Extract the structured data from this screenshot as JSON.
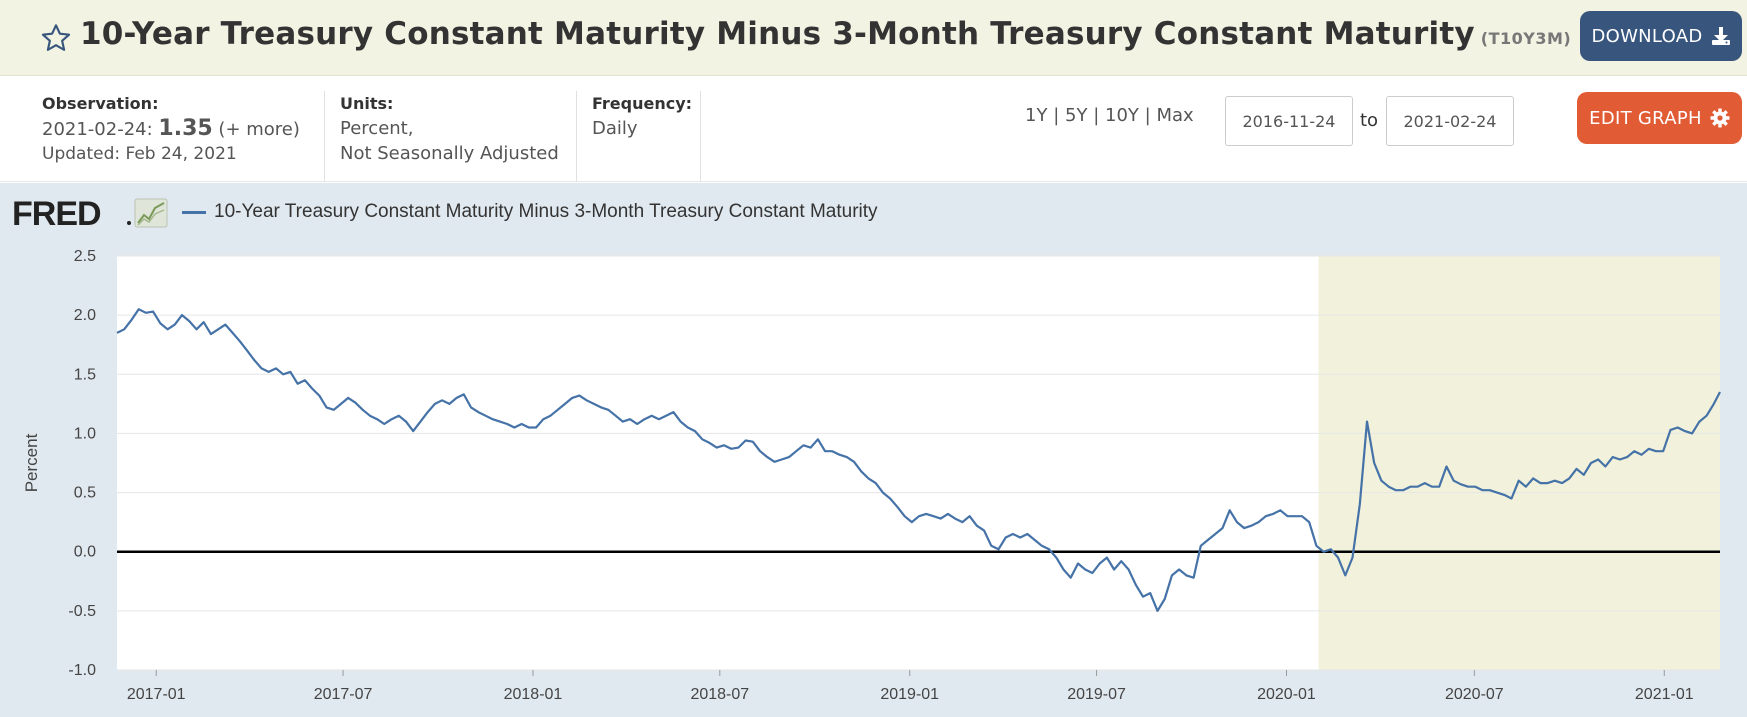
{
  "header": {
    "title": "10-Year Treasury Constant Maturity Minus 3-Month Treasury Constant Maturity",
    "series_id": "(T10Y3M)",
    "download_label": "DOWNLOAD"
  },
  "meta": {
    "observation_label": "Observation:",
    "observation_date": "2021-02-24:",
    "observation_value": "1.35",
    "observation_more": "(+ more)",
    "updated": "Updated: Feb 24, 2021",
    "units_label": "Units:",
    "units_line1": "Percent,",
    "units_line2": "Not Seasonally Adjusted",
    "frequency_label": "Frequency:",
    "frequency_value": "Daily"
  },
  "controls": {
    "range_1y": "1Y",
    "range_5y": "5Y",
    "range_10y": "10Y",
    "range_max": "Max",
    "start_date": "2016-11-24",
    "to_label": "to",
    "end_date": "2021-02-24",
    "edit_label": "EDIT GRAPH"
  },
  "colors": {
    "series": "#4572a7",
    "recession_band": "#f2f2dc",
    "plot_bg": "#ffffff",
    "chart_bg": "#e1e9f0",
    "download_btn": "#37557d",
    "edit_btn": "#e15b35"
  },
  "chart_data": {
    "type": "line",
    "title": "",
    "xlabel": "",
    "ylabel": "Percent",
    "ylim": [
      -1.0,
      2.5
    ],
    "xlim": [
      "2016-11-24",
      "2021-02-24"
    ],
    "yticks": [
      2.5,
      2.0,
      1.5,
      1.0,
      0.5,
      0.0,
      -0.5,
      -1.0
    ],
    "ytick_labels": [
      "2.5",
      "2.0",
      "1.5",
      "1.0",
      "0.5",
      "0.0",
      "-0.5",
      "-1.0"
    ],
    "xticks": [
      "2017-01-01",
      "2017-07-01",
      "2018-01-01",
      "2018-07-01",
      "2019-01-01",
      "2019-07-01",
      "2020-01-01",
      "2020-07-01",
      "2021-01-01"
    ],
    "xtick_labels": [
      "2017-01",
      "2017-07",
      "2018-01",
      "2018-07",
      "2019-01",
      "2019-07",
      "2020-01",
      "2020-07",
      "2021-01"
    ],
    "shaded_periods": [
      {
        "start": "2020-02-01",
        "end": "2021-02-24"
      }
    ],
    "reference_lines": [
      0.0
    ],
    "grid": "horizontal",
    "legend_position": "top-left",
    "series": [
      {
        "name": "10-Year Treasury Constant Maturity Minus 3-Month Treasury Constant Maturity",
        "points": [
          [
            "2016-11-24",
            1.85
          ],
          [
            "2016-12-01",
            1.88
          ],
          [
            "2016-12-08",
            1.96
          ],
          [
            "2016-12-15",
            2.05
          ],
          [
            "2016-12-22",
            2.02
          ],
          [
            "2016-12-29",
            2.03
          ],
          [
            "2017-01-05",
            1.93
          ],
          [
            "2017-01-12",
            1.88
          ],
          [
            "2017-01-19",
            1.92
          ],
          [
            "2017-01-26",
            2.0
          ],
          [
            "2017-02-02",
            1.95
          ],
          [
            "2017-02-09",
            1.88
          ],
          [
            "2017-02-16",
            1.94
          ],
          [
            "2017-02-23",
            1.84
          ],
          [
            "2017-03-02",
            1.88
          ],
          [
            "2017-03-09",
            1.92
          ],
          [
            "2017-03-16",
            1.85
          ],
          [
            "2017-03-23",
            1.78
          ],
          [
            "2017-03-30",
            1.7
          ],
          [
            "2017-04-06",
            1.62
          ],
          [
            "2017-04-13",
            1.55
          ],
          [
            "2017-04-20",
            1.52
          ],
          [
            "2017-04-27",
            1.55
          ],
          [
            "2017-05-04",
            1.5
          ],
          [
            "2017-05-11",
            1.52
          ],
          [
            "2017-05-18",
            1.42
          ],
          [
            "2017-05-25",
            1.45
          ],
          [
            "2017-06-01",
            1.38
          ],
          [
            "2017-06-08",
            1.32
          ],
          [
            "2017-06-15",
            1.22
          ],
          [
            "2017-06-22",
            1.2
          ],
          [
            "2017-06-29",
            1.25
          ],
          [
            "2017-07-06",
            1.3
          ],
          [
            "2017-07-13",
            1.26
          ],
          [
            "2017-07-20",
            1.2
          ],
          [
            "2017-07-27",
            1.15
          ],
          [
            "2017-08-03",
            1.12
          ],
          [
            "2017-08-10",
            1.08
          ],
          [
            "2017-08-17",
            1.12
          ],
          [
            "2017-08-24",
            1.15
          ],
          [
            "2017-08-31",
            1.1
          ],
          [
            "2017-09-07",
            1.02
          ],
          [
            "2017-09-14",
            1.1
          ],
          [
            "2017-09-21",
            1.18
          ],
          [
            "2017-09-28",
            1.25
          ],
          [
            "2017-10-05",
            1.28
          ],
          [
            "2017-10-12",
            1.25
          ],
          [
            "2017-10-19",
            1.3
          ],
          [
            "2017-10-26",
            1.33
          ],
          [
            "2017-11-02",
            1.22
          ],
          [
            "2017-11-09",
            1.18
          ],
          [
            "2017-11-16",
            1.15
          ],
          [
            "2017-11-23",
            1.12
          ],
          [
            "2017-11-30",
            1.1
          ],
          [
            "2017-12-07",
            1.08
          ],
          [
            "2017-12-14",
            1.05
          ],
          [
            "2017-12-21",
            1.08
          ],
          [
            "2017-12-28",
            1.05
          ],
          [
            "2018-01-04",
            1.05
          ],
          [
            "2018-01-11",
            1.12
          ],
          [
            "2018-01-18",
            1.15
          ],
          [
            "2018-01-25",
            1.2
          ],
          [
            "2018-02-01",
            1.25
          ],
          [
            "2018-02-08",
            1.3
          ],
          [
            "2018-02-15",
            1.32
          ],
          [
            "2018-02-22",
            1.28
          ],
          [
            "2018-03-01",
            1.25
          ],
          [
            "2018-03-08",
            1.22
          ],
          [
            "2018-03-15",
            1.2
          ],
          [
            "2018-03-22",
            1.15
          ],
          [
            "2018-03-29",
            1.1
          ],
          [
            "2018-04-05",
            1.12
          ],
          [
            "2018-04-12",
            1.08
          ],
          [
            "2018-04-19",
            1.12
          ],
          [
            "2018-04-26",
            1.15
          ],
          [
            "2018-05-03",
            1.12
          ],
          [
            "2018-05-10",
            1.15
          ],
          [
            "2018-05-17",
            1.18
          ],
          [
            "2018-05-24",
            1.1
          ],
          [
            "2018-05-31",
            1.05
          ],
          [
            "2018-06-07",
            1.02
          ],
          [
            "2018-06-14",
            0.95
          ],
          [
            "2018-06-21",
            0.92
          ],
          [
            "2018-06-28",
            0.88
          ],
          [
            "2018-07-05",
            0.9
          ],
          [
            "2018-07-12",
            0.87
          ],
          [
            "2018-07-19",
            0.88
          ],
          [
            "2018-07-26",
            0.94
          ],
          [
            "2018-08-02",
            0.93
          ],
          [
            "2018-08-09",
            0.85
          ],
          [
            "2018-08-16",
            0.8
          ],
          [
            "2018-08-23",
            0.76
          ],
          [
            "2018-08-30",
            0.78
          ],
          [
            "2018-09-06",
            0.8
          ],
          [
            "2018-09-13",
            0.85
          ],
          [
            "2018-09-20",
            0.9
          ],
          [
            "2018-09-27",
            0.88
          ],
          [
            "2018-10-04",
            0.95
          ],
          [
            "2018-10-11",
            0.85
          ],
          [
            "2018-10-18",
            0.85
          ],
          [
            "2018-10-25",
            0.82
          ],
          [
            "2018-11-01",
            0.8
          ],
          [
            "2018-11-08",
            0.76
          ],
          [
            "2018-11-15",
            0.68
          ],
          [
            "2018-11-22",
            0.62
          ],
          [
            "2018-11-29",
            0.58
          ],
          [
            "2018-12-06",
            0.5
          ],
          [
            "2018-12-13",
            0.45
          ],
          [
            "2018-12-20",
            0.38
          ],
          [
            "2018-12-27",
            0.3
          ],
          [
            "2019-01-03",
            0.25
          ],
          [
            "2019-01-10",
            0.3
          ],
          [
            "2019-01-17",
            0.32
          ],
          [
            "2019-01-24",
            0.3
          ],
          [
            "2019-01-31",
            0.28
          ],
          [
            "2019-02-07",
            0.32
          ],
          [
            "2019-02-14",
            0.28
          ],
          [
            "2019-02-21",
            0.25
          ],
          [
            "2019-02-28",
            0.3
          ],
          [
            "2019-03-07",
            0.22
          ],
          [
            "2019-03-14",
            0.18
          ],
          [
            "2019-03-21",
            0.05
          ],
          [
            "2019-03-28",
            0.02
          ],
          [
            "2019-04-04",
            0.12
          ],
          [
            "2019-04-11",
            0.15
          ],
          [
            "2019-04-18",
            0.12
          ],
          [
            "2019-04-25",
            0.15
          ],
          [
            "2019-05-02",
            0.1
          ],
          [
            "2019-05-09",
            0.05
          ],
          [
            "2019-05-16",
            0.02
          ],
          [
            "2019-05-23",
            -0.05
          ],
          [
            "2019-05-30",
            -0.15
          ],
          [
            "2019-06-06",
            -0.22
          ],
          [
            "2019-06-13",
            -0.1
          ],
          [
            "2019-06-20",
            -0.15
          ],
          [
            "2019-06-27",
            -0.18
          ],
          [
            "2019-07-04",
            -0.1
          ],
          [
            "2019-07-11",
            -0.05
          ],
          [
            "2019-07-18",
            -0.15
          ],
          [
            "2019-07-25",
            -0.08
          ],
          [
            "2019-08-01",
            -0.15
          ],
          [
            "2019-08-08",
            -0.28
          ],
          [
            "2019-08-15",
            -0.38
          ],
          [
            "2019-08-22",
            -0.35
          ],
          [
            "2019-08-29",
            -0.5
          ],
          [
            "2019-09-05",
            -0.4
          ],
          [
            "2019-09-12",
            -0.2
          ],
          [
            "2019-09-19",
            -0.15
          ],
          [
            "2019-09-26",
            -0.2
          ],
          [
            "2019-10-03",
            -0.22
          ],
          [
            "2019-10-10",
            0.05
          ],
          [
            "2019-10-17",
            0.1
          ],
          [
            "2019-10-24",
            0.15
          ],
          [
            "2019-10-31",
            0.2
          ],
          [
            "2019-11-07",
            0.35
          ],
          [
            "2019-11-14",
            0.25
          ],
          [
            "2019-11-21",
            0.2
          ],
          [
            "2019-11-28",
            0.22
          ],
          [
            "2019-12-05",
            0.25
          ],
          [
            "2019-12-12",
            0.3
          ],
          [
            "2019-12-19",
            0.32
          ],
          [
            "2019-12-26",
            0.35
          ],
          [
            "2020-01-02",
            0.3
          ],
          [
            "2020-01-09",
            0.3
          ],
          [
            "2020-01-16",
            0.3
          ],
          [
            "2020-01-23",
            0.25
          ],
          [
            "2020-01-30",
            0.05
          ],
          [
            "2020-02-06",
            0.0
          ],
          [
            "2020-02-13",
            0.02
          ],
          [
            "2020-02-20",
            -0.05
          ],
          [
            "2020-02-27",
            -0.2
          ],
          [
            "2020-03-05",
            -0.05
          ],
          [
            "2020-03-12",
            0.4
          ],
          [
            "2020-03-19",
            1.1
          ],
          [
            "2020-03-26",
            0.75
          ],
          [
            "2020-04-02",
            0.6
          ],
          [
            "2020-04-09",
            0.55
          ],
          [
            "2020-04-16",
            0.52
          ],
          [
            "2020-04-23",
            0.52
          ],
          [
            "2020-04-30",
            0.55
          ],
          [
            "2020-05-07",
            0.55
          ],
          [
            "2020-05-14",
            0.58
          ],
          [
            "2020-05-21",
            0.55
          ],
          [
            "2020-05-28",
            0.55
          ],
          [
            "2020-06-04",
            0.72
          ],
          [
            "2020-06-11",
            0.6
          ],
          [
            "2020-06-18",
            0.57
          ],
          [
            "2020-06-25",
            0.55
          ],
          [
            "2020-07-02",
            0.55
          ],
          [
            "2020-07-09",
            0.52
          ],
          [
            "2020-07-16",
            0.52
          ],
          [
            "2020-07-23",
            0.5
          ],
          [
            "2020-07-30",
            0.48
          ],
          [
            "2020-08-06",
            0.45
          ],
          [
            "2020-08-13",
            0.6
          ],
          [
            "2020-08-20",
            0.55
          ],
          [
            "2020-08-27",
            0.62
          ],
          [
            "2020-09-03",
            0.58
          ],
          [
            "2020-09-10",
            0.58
          ],
          [
            "2020-09-17",
            0.6
          ],
          [
            "2020-09-24",
            0.58
          ],
          [
            "2020-10-01",
            0.62
          ],
          [
            "2020-10-08",
            0.7
          ],
          [
            "2020-10-15",
            0.65
          ],
          [
            "2020-10-22",
            0.75
          ],
          [
            "2020-10-29",
            0.78
          ],
          [
            "2020-11-05",
            0.72
          ],
          [
            "2020-11-12",
            0.8
          ],
          [
            "2020-11-19",
            0.78
          ],
          [
            "2020-11-26",
            0.8
          ],
          [
            "2020-12-03",
            0.85
          ],
          [
            "2020-12-10",
            0.82
          ],
          [
            "2020-12-17",
            0.87
          ],
          [
            "2020-12-24",
            0.85
          ],
          [
            "2020-12-31",
            0.85
          ],
          [
            "2021-01-07",
            1.03
          ],
          [
            "2021-01-14",
            1.05
          ],
          [
            "2021-01-21",
            1.02
          ],
          [
            "2021-01-28",
            1.0
          ],
          [
            "2021-02-04",
            1.1
          ],
          [
            "2021-02-11",
            1.15
          ],
          [
            "2021-02-18",
            1.25
          ],
          [
            "2021-02-24",
            1.35
          ]
        ]
      }
    ]
  }
}
